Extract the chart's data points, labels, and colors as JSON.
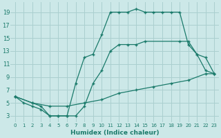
{
  "xlabel": "Humidex (Indice chaleur)",
  "bg_color": "#cce8e8",
  "grid_color": "#aacfcf",
  "line_color": "#1a7a6a",
  "xlim": [
    -0.5,
    23.5
  ],
  "ylim": [
    2,
    20.5
  ],
  "xticks": [
    0,
    1,
    2,
    3,
    4,
    5,
    6,
    7,
    8,
    9,
    10,
    11,
    12,
    13,
    14,
    15,
    16,
    17,
    18,
    19,
    20,
    21,
    22,
    23
  ],
  "yticks": [
    3,
    5,
    7,
    9,
    11,
    13,
    15,
    17,
    19
  ],
  "line1_x": [
    0,
    1,
    2,
    3,
    4,
    5,
    6,
    7,
    8,
    9,
    10,
    11,
    12,
    13,
    14,
    15,
    16,
    17,
    18,
    19,
    20,
    21,
    22,
    23
  ],
  "line1_y": [
    6,
    5,
    4.5,
    4,
    3,
    3,
    3,
    8,
    12,
    12.5,
    15.5,
    19,
    19,
    19,
    19.5,
    19,
    19,
    19,
    19,
    19,
    14,
    12.5,
    10,
    9.5
  ],
  "line2_x": [
    0,
    2,
    3,
    4,
    5,
    6,
    7,
    8,
    9,
    10,
    11,
    12,
    13,
    14,
    15,
    19,
    20,
    21,
    22,
    23
  ],
  "line2_y": [
    6,
    5,
    4.5,
    3,
    3,
    3,
    3,
    4.5,
    8,
    10,
    13,
    14,
    14,
    14,
    14.5,
    14.5,
    14.5,
    12.5,
    12,
    9.5
  ],
  "line3_x": [
    0,
    2,
    4,
    6,
    8,
    10,
    12,
    14,
    16,
    18,
    20,
    22,
    23
  ],
  "line3_y": [
    6,
    5,
    4.5,
    4.5,
    5,
    5.5,
    6.5,
    7,
    7.5,
    8,
    8.5,
    9.5,
    9.5
  ]
}
